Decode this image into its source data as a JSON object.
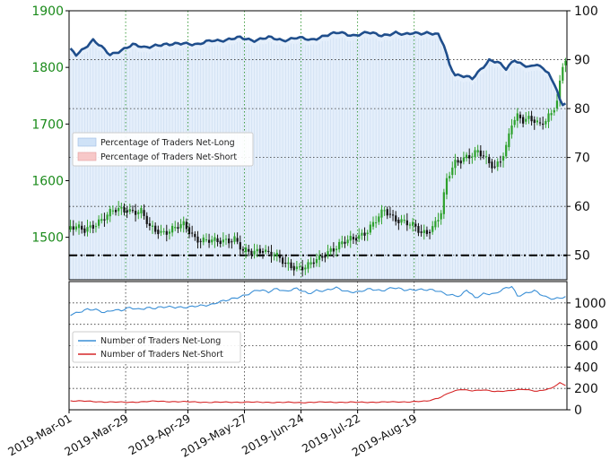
{
  "chart_data": [
    {
      "type": "candlestick",
      "panel": "top",
      "left_axis": {
        "ticks": [
          1500,
          1600,
          1700,
          1800,
          1900
        ],
        "range": [
          1425,
          1900
        ]
      },
      "right_axis": {
        "ticks": [
          50,
          60,
          70,
          80,
          90,
          100
        ],
        "range": [
          45,
          100
        ]
      },
      "legend": {
        "position": "left",
        "items": [
          "Percentage of Traders Net-Long",
          "Percentage of Traders Net-Short"
        ]
      },
      "reference_line_pct": 50,
      "colors": {
        "up": "#2ca02c",
        "down": "#111111",
        "net_long_line": "#1f4e8c",
        "net_long_fill": "#cfe2f7",
        "net_short_fill": "#f7c8c8"
      },
      "price_anchors": [
        [
          0,
          1520
        ],
        [
          5,
          1510
        ],
        [
          10,
          1530
        ],
        [
          15,
          1545
        ],
        [
          20,
          1550
        ],
        [
          25,
          1545
        ],
        [
          28,
          1515
        ],
        [
          32,
          1510
        ],
        [
          36,
          1515
        ],
        [
          40,
          1520
        ],
        [
          44,
          1500
        ],
        [
          48,
          1495
        ],
        [
          52,
          1490
        ],
        [
          55,
          1495
        ],
        [
          58,
          1500
        ],
        [
          61,
          1475
        ],
        [
          64,
          1470
        ],
        [
          68,
          1480
        ],
        [
          72,
          1470
        ],
        [
          76,
          1450
        ],
        [
          80,
          1448
        ],
        [
          84,
          1450
        ],
        [
          88,
          1460
        ],
        [
          92,
          1480
        ],
        [
          96,
          1490
        ],
        [
          100,
          1495
        ],
        [
          104,
          1510
        ],
        [
          108,
          1530
        ],
        [
          111,
          1545
        ],
        [
          114,
          1535
        ],
        [
          118,
          1530
        ],
        [
          122,
          1515
        ],
        [
          124,
          1505
        ],
        [
          126,
          1510
        ],
        [
          128,
          1520
        ],
        [
          131,
          1545
        ],
        [
          133,
          1600
        ],
        [
          136,
          1630
        ],
        [
          140,
          1645
        ],
        [
          144,
          1650
        ],
        [
          146,
          1640
        ],
        [
          148,
          1630
        ],
        [
          150,
          1625
        ],
        [
          152,
          1640
        ],
        [
          154,
          1660
        ],
        [
          156,
          1700
        ],
        [
          158,
          1710
        ],
        [
          160,
          1705
        ],
        [
          162,
          1712
        ],
        [
          164,
          1710
        ],
        [
          166,
          1700
        ],
        [
          168,
          1705
        ],
        [
          170,
          1715
        ],
        [
          172,
          1740
        ],
        [
          174,
          1805
        ],
        [
          175,
          1820
        ]
      ],
      "net_long_pct_anchors": [
        [
          0,
          92
        ],
        [
          2,
          91
        ],
        [
          4,
          92
        ],
        [
          8,
          94
        ],
        [
          12,
          92
        ],
        [
          14,
          91
        ],
        [
          18,
          92
        ],
        [
          22,
          93
        ],
        [
          26,
          92.5
        ],
        [
          30,
          93
        ],
        [
          35,
          93
        ],
        [
          40,
          93.5
        ],
        [
          45,
          93
        ],
        [
          50,
          94
        ],
        [
          55,
          94
        ],
        [
          60,
          94.5
        ],
        [
          65,
          94
        ],
        [
          70,
          94.5
        ],
        [
          75,
          94
        ],
        [
          80,
          94.5
        ],
        [
          85,
          94
        ],
        [
          90,
          95
        ],
        [
          95,
          95.5
        ],
        [
          100,
          95
        ],
        [
          105,
          95.5
        ],
        [
          110,
          95
        ],
        [
          115,
          95.5
        ],
        [
          118,
          95
        ],
        [
          121,
          95.5
        ],
        [
          126,
          95.5
        ],
        [
          130,
          95
        ],
        [
          132,
          93
        ],
        [
          134,
          89
        ],
        [
          136,
          87
        ],
        [
          140,
          86.5
        ],
        [
          142,
          86
        ],
        [
          145,
          88
        ],
        [
          148,
          90
        ],
        [
          151,
          89.5
        ],
        [
          154,
          88
        ],
        [
          157,
          90
        ],
        [
          160,
          89
        ],
        [
          163,
          88.5
        ],
        [
          165,
          89
        ],
        [
          167,
          88
        ],
        [
          169,
          87.5
        ],
        [
          170,
          86
        ],
        [
          172,
          84
        ],
        [
          173,
          82
        ],
        [
          174,
          80.5
        ],
        [
          175,
          81
        ]
      ]
    },
    {
      "type": "line",
      "panel": "bottom",
      "y_axis": {
        "ticks": [
          0,
          200,
          400,
          600,
          800,
          1000
        ],
        "range": [
          0,
          1200
        ]
      },
      "legend": {
        "position": "left",
        "items": [
          "Number of Traders Net-Long",
          "Number of Traders Net-Short"
        ]
      },
      "x_tick_labels": [
        "2019-Mar-01",
        "2019-Mar-29",
        "2019-Apr-29",
        "2019-May-27",
        "2019-Jun-24",
        "2019-Jul-22",
        "2019-Aug-19"
      ],
      "x_tick_positions": [
        0,
        20,
        42,
        62,
        82,
        102,
        122
      ],
      "series": [
        {
          "name": "Number of Traders Net-Long",
          "color": "#3a8fd6",
          "anchors": [
            [
              0,
              890
            ],
            [
              3,
              920
            ],
            [
              6,
              940
            ],
            [
              9,
              930
            ],
            [
              12,
              910
            ],
            [
              15,
              940
            ],
            [
              18,
              930
            ],
            [
              21,
              950
            ],
            [
              24,
              940
            ],
            [
              27,
              960
            ],
            [
              30,
              950
            ],
            [
              34,
              960
            ],
            [
              38,
              965
            ],
            [
              42,
              960
            ],
            [
              46,
              970
            ],
            [
              50,
              990
            ],
            [
              52,
              1010
            ],
            [
              55,
              1020
            ],
            [
              58,
              1040
            ],
            [
              62,
              1080
            ],
            [
              66,
              1120
            ],
            [
              70,
              1100
            ],
            [
              73,
              1140
            ],
            [
              76,
              1110
            ],
            [
              80,
              1130
            ],
            [
              84,
              1090
            ],
            [
              87,
              1120
            ],
            [
              90,
              1110
            ],
            [
              94,
              1140
            ],
            [
              98,
              1110
            ],
            [
              102,
              1100
            ],
            [
              106,
              1130
            ],
            [
              110,
              1120
            ],
            [
              114,
              1140
            ],
            [
              118,
              1120
            ],
            [
              122,
              1130
            ],
            [
              126,
              1120
            ],
            [
              130,
              1110
            ],
            [
              134,
              1080
            ],
            [
              138,
              1060
            ],
            [
              140,
              1120
            ],
            [
              143,
              1050
            ],
            [
              146,
              1090
            ],
            [
              150,
              1080
            ],
            [
              154,
              1140
            ],
            [
              156,
              1160
            ],
            [
              158,
              1070
            ],
            [
              160,
              1080
            ],
            [
              164,
              1110
            ],
            [
              168,
              1060
            ],
            [
              171,
              1040
            ],
            [
              175,
              1050
            ]
          ]
        },
        {
          "name": "Number of Traders Net-Short",
          "color": "#d62728",
          "anchors": [
            [
              0,
              85
            ],
            [
              5,
              80
            ],
            [
              10,
              75
            ],
            [
              20,
              70
            ],
            [
              30,
              80
            ],
            [
              40,
              75
            ],
            [
              50,
              70
            ],
            [
              60,
              72
            ],
            [
              70,
              70
            ],
            [
              80,
              68
            ],
            [
              90,
              72
            ],
            [
              100,
              70
            ],
            [
              110,
              72
            ],
            [
              120,
              75
            ],
            [
              126,
              80
            ],
            [
              130,
              110
            ],
            [
              134,
              160
            ],
            [
              138,
              190
            ],
            [
              142,
              180
            ],
            [
              146,
              185
            ],
            [
              150,
              170
            ],
            [
              155,
              180
            ],
            [
              160,
              190
            ],
            [
              165,
              175
            ],
            [
              170,
              200
            ],
            [
              173,
              250
            ],
            [
              175,
              230
            ]
          ]
        }
      ]
    }
  ]
}
